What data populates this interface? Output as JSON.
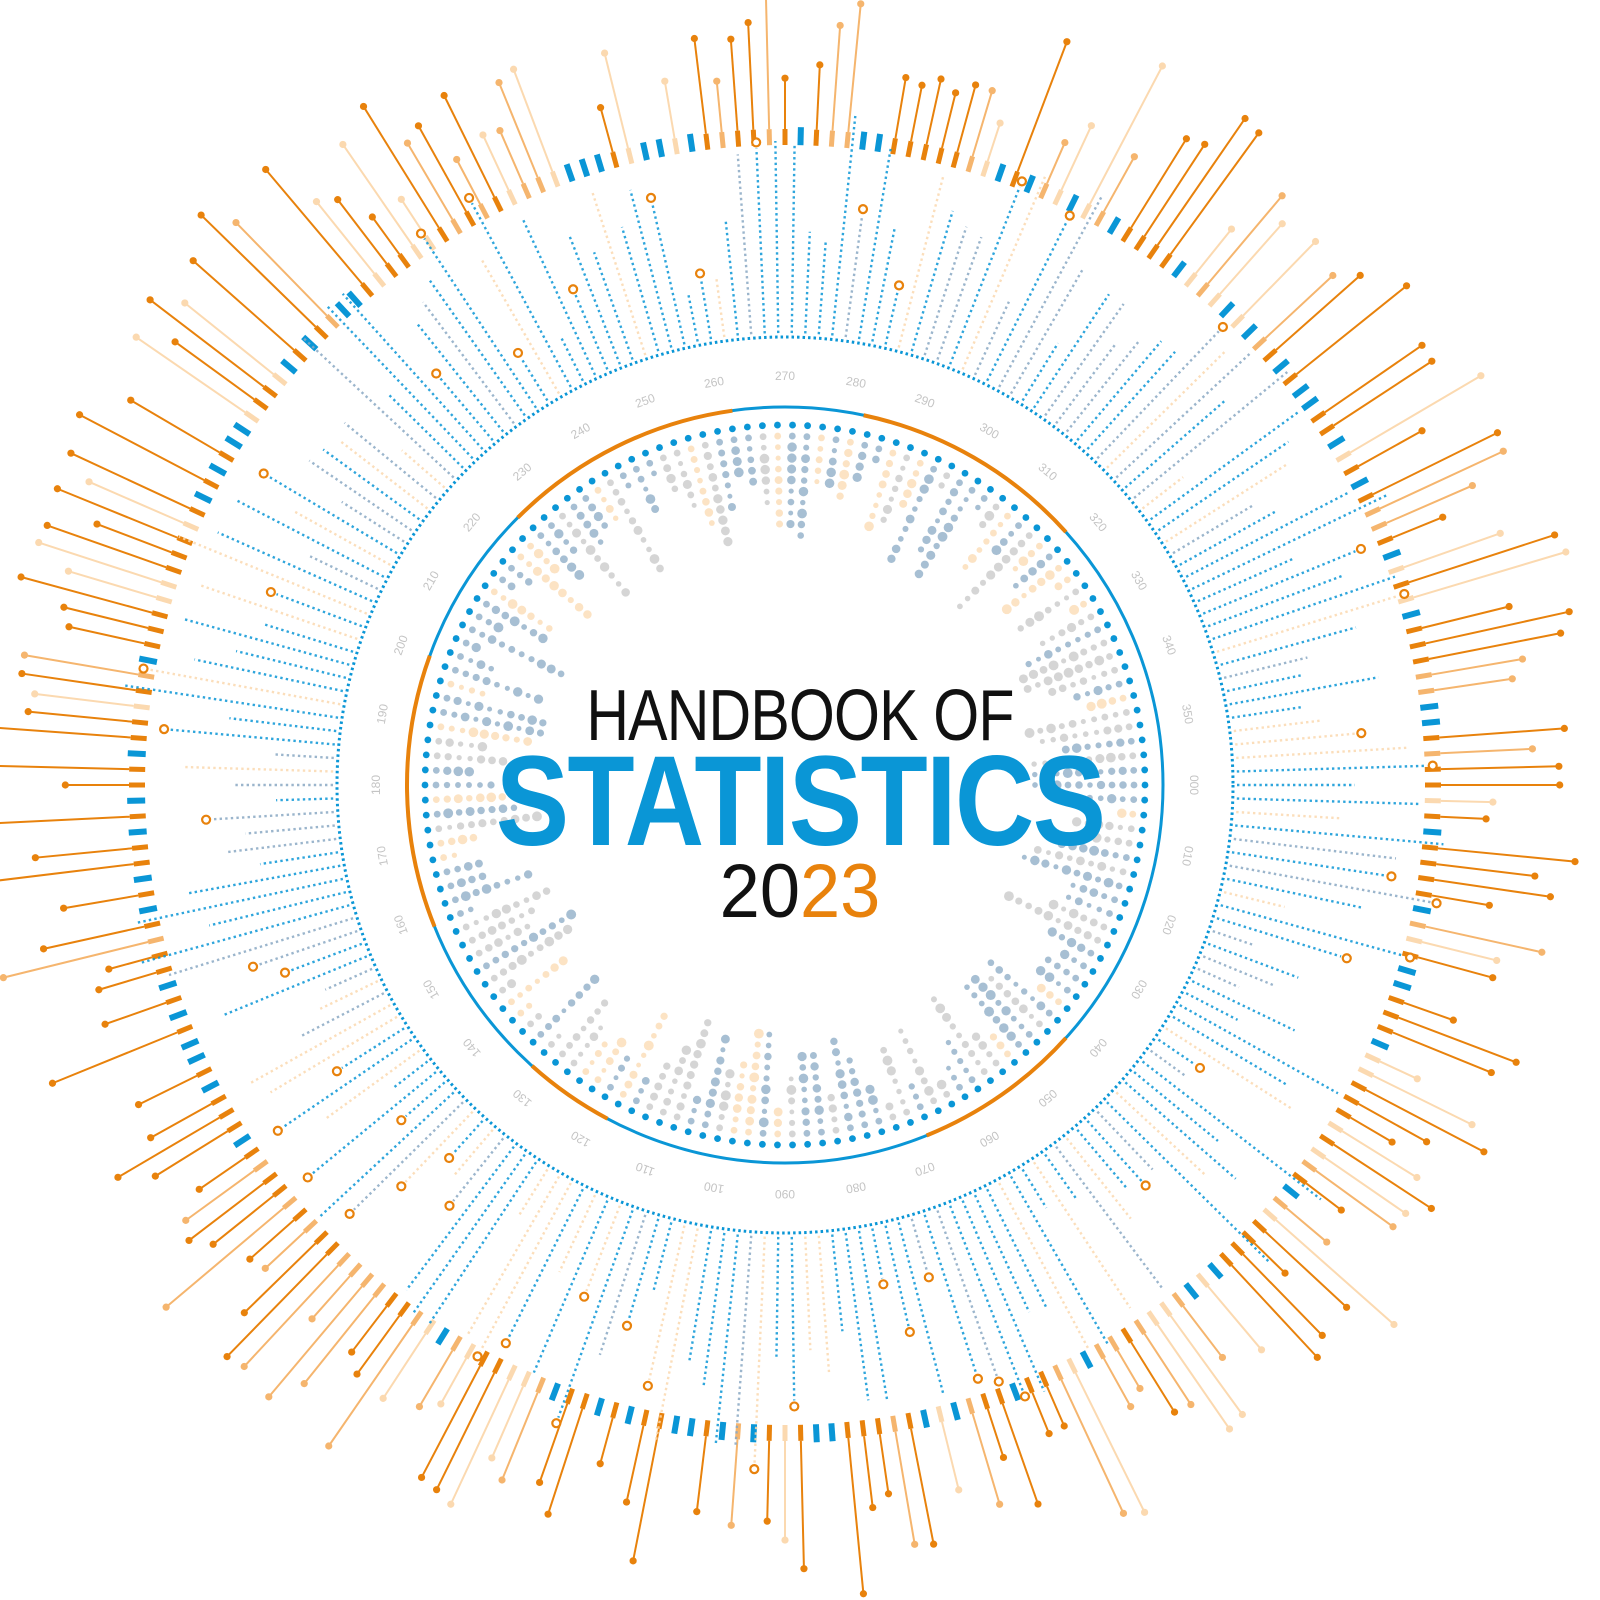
{
  "title": {
    "line1": "HANDBOOK OF",
    "line2": "STATISTICS",
    "year_part1": "20",
    "year_part2": "23"
  },
  "ring_labels": [
    "000",
    "010",
    "020",
    "030",
    "040",
    "050",
    "060",
    "070",
    "080",
    "090",
    "100",
    "110",
    "120",
    "130",
    "140",
    "150",
    "160",
    "170",
    "180",
    "190",
    "200",
    "210",
    "220",
    "230",
    "240",
    "250",
    "260",
    "270",
    "280",
    "290",
    "300",
    "310",
    "320",
    "330",
    "340",
    "350"
  ],
  "colors": {
    "blue": "#0a96d6",
    "orange": "#e8820c",
    "orange_light": "#f5b56e",
    "orange_pale": "#fbd9b0",
    "grey_blue": "#8aa9c4",
    "grey": "#c7c7c7",
    "label_grey": "#c4c4c4",
    "text_dark": "#111111"
  }
}
